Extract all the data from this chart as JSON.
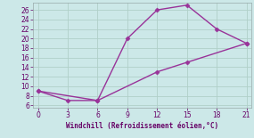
{
  "line1_x": [
    0,
    6,
    9,
    12,
    15,
    18,
    21
  ],
  "line1_y": [
    9,
    7,
    20,
    26,
    27,
    22,
    19
  ],
  "line2_x": [
    0,
    3,
    6,
    12,
    15,
    21
  ],
  "line2_y": [
    9,
    7,
    7,
    13,
    15,
    19
  ],
  "color": "#993399",
  "bg_color": "#cce8e8",
  "grid_color": "#b0d0c8",
  "xlabel": "Windchill (Refroidissement éolien,°C)",
  "xlim": [
    -0.5,
    21.5
  ],
  "ylim": [
    5.5,
    27.5
  ],
  "xticks": [
    0,
    3,
    6,
    9,
    12,
    15,
    18,
    21
  ],
  "yticks": [
    6,
    8,
    10,
    12,
    14,
    16,
    18,
    20,
    22,
    24,
    26
  ],
  "marker": "D",
  "markersize": 2.5,
  "linewidth": 1.0
}
